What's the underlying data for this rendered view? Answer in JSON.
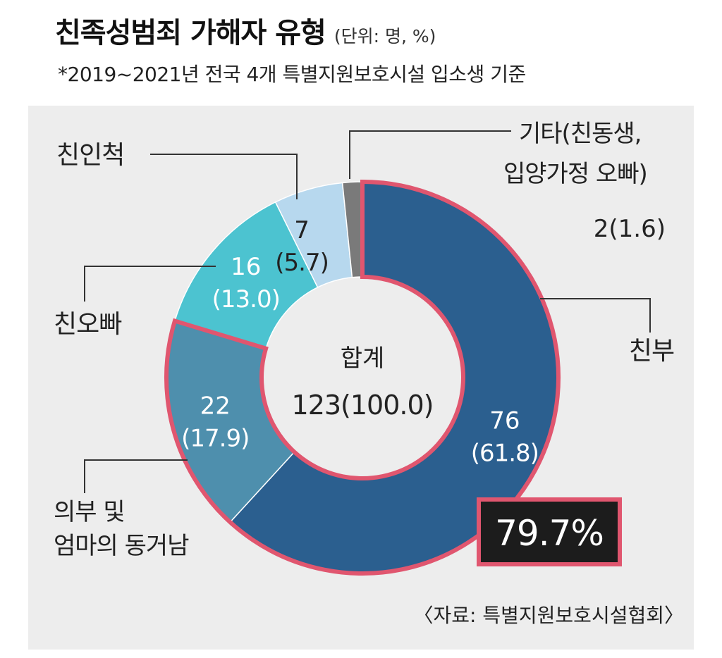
{
  "title": "친족성범죄 가해자 유형",
  "unit": "(단위: 명, %)",
  "note": "*2019~2021년 전국 4개 특별지원보호시설 입소생 기준",
  "source": "〈자료: 특별지원보호시설협회〉",
  "center": {
    "label": "합계",
    "total": "123(100.0)"
  },
  "highlight": "79.7%",
  "colors": {
    "panel": "#ededed",
    "highlight_border": "#e0566f",
    "highlight_box": "#1c1c1c"
  },
  "chart_data": {
    "type": "pie",
    "donut": true,
    "total": 123,
    "slices": [
      {
        "category": "친부",
        "value": 76,
        "percent": 61.8,
        "value_label": "76",
        "percent_label": "(61.8)",
        "color": "#2b5f8f",
        "highlighted": true
      },
      {
        "category": "의부 및 엄마의 동거남",
        "category_lines": [
          "의부 및",
          "엄마의 동거남"
        ],
        "value": 22,
        "percent": 17.9,
        "value_label": "22",
        "percent_label": "(17.9)",
        "color": "#4e8fad",
        "highlighted": true
      },
      {
        "category": "친오빠",
        "value": 16,
        "percent": 13.0,
        "value_label": "16",
        "percent_label": "(13.0)",
        "color": "#4cc3d0",
        "highlighted": false
      },
      {
        "category": "친인척",
        "value": 7,
        "percent": 5.7,
        "value_label": "7",
        "percent_label": "(5.7)",
        "color": "#b7d8ee",
        "highlighted": false
      },
      {
        "category": "기타(친동생, 입양가정 오빠)",
        "category_lines": [
          "기타(친동생,",
          "입양가정 오빠)"
        ],
        "value": 2,
        "percent": 1.6,
        "value_label": "2(1.6)",
        "color": "#7a7a7a",
        "highlighted": false
      }
    ]
  }
}
